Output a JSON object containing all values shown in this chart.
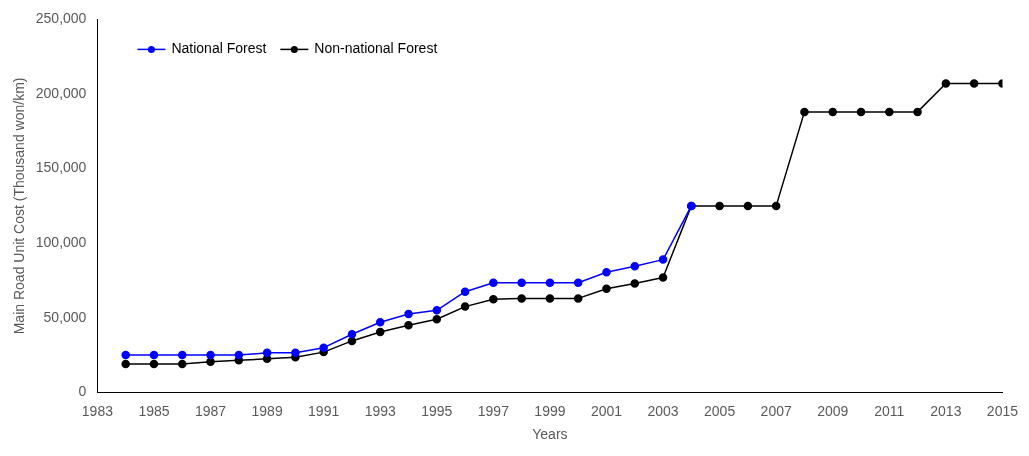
{
  "chart_data": {
    "type": "line",
    "xlabel": "Years",
    "ylabel": "Main Road Unit Cost (Thousand won/km)",
    "x": [
      1984,
      1985,
      1986,
      1987,
      1988,
      1989,
      1990,
      1991,
      1992,
      1993,
      1994,
      1995,
      1996,
      1997,
      1998,
      1999,
      2000,
      2001,
      2002,
      2003,
      2004,
      2005,
      2006,
      2007,
      2008,
      2009,
      2010,
      2011,
      2012,
      2013,
      2014,
      2015
    ],
    "series": [
      {
        "name": "National Forest",
        "color": "#0000ff",
        "values": [
          25000,
          25000,
          25000,
          25000,
          25000,
          26500,
          26500,
          30000,
          39000,
          47000,
          52500,
          55000,
          67500,
          73500,
          73500,
          73500,
          73500,
          80500,
          84500,
          89000,
          125000,
          null,
          null,
          null,
          null,
          null,
          null,
          null,
          null,
          null,
          null,
          null
        ]
      },
      {
        "name": "Non-national Forest",
        "color": "#000000",
        "values": [
          19000,
          19000,
          19000,
          20500,
          21500,
          22500,
          23500,
          27000,
          34500,
          40500,
          45000,
          49000,
          57500,
          62500,
          63000,
          63000,
          63000,
          69500,
          73000,
          77000,
          125000,
          125000,
          125000,
          125000,
          188000,
          188000,
          188000,
          188000,
          188000,
          207000,
          207000,
          207000
        ]
      }
    ],
    "xlim": [
      1983,
      2015
    ],
    "xticks": [
      1983,
      1985,
      1987,
      1989,
      1991,
      1993,
      1995,
      1997,
      1999,
      2001,
      2003,
      2005,
      2007,
      2009,
      2011,
      2013,
      2015
    ],
    "ylim": [
      0,
      250000
    ],
    "yticks": [
      0,
      {
        "value": 50000,
        "label": "50,000"
      },
      {
        "value": 100000,
        "label": "100,000"
      },
      {
        "value": 150000,
        "label": "150,000"
      },
      {
        "value": 200000,
        "label": "200,000"
      },
      {
        "value": 250000,
        "label": "250,000"
      }
    ],
    "grid": false,
    "legend": "top left",
    "marker": "circle",
    "line_style": "solid"
  }
}
